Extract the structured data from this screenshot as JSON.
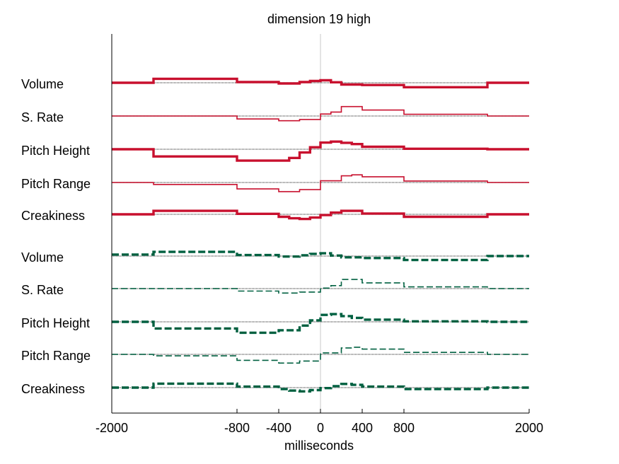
{
  "chart_data": {
    "type": "line",
    "title": "dimension 19 high",
    "xlabel": "milliseconds",
    "xlim": [
      -2000,
      2000
    ],
    "x_ticks": [
      -2000,
      -800,
      -400,
      0,
      400,
      800,
      2000
    ],
    "x_tick_labels": [
      "-2000",
      "-800",
      "-400",
      "0",
      "400",
      "800",
      "2000"
    ],
    "vertical_reference_line_at": 0,
    "colors": {
      "high": "#c8102e",
      "low": "#006040",
      "baseline": "#606060"
    },
    "groups": [
      {
        "color": "#c8102e",
        "dash": "solid",
        "rows": [
          {
            "label": "Volume",
            "thick": true,
            "steps": [
              [
                -2000,
                -1600,
                0
              ],
              [
                -1600,
                -800,
                1.6
              ],
              [
                -800,
                -400,
                0.3
              ],
              [
                -400,
                -200,
                -0.3
              ],
              [
                -200,
                -100,
                0.3
              ],
              [
                -100,
                0,
                0.7
              ],
              [
                0,
                100,
                1.0
              ],
              [
                100,
                200,
                0.2
              ],
              [
                200,
                400,
                -0.7
              ],
              [
                400,
                800,
                -0.9
              ],
              [
                800,
                1600,
                -1.8
              ],
              [
                1600,
                2000,
                0
              ]
            ]
          },
          {
            "label": "S. Rate",
            "thick": false,
            "steps": [
              [
                -2000,
                -800,
                0
              ],
              [
                -800,
                -400,
                -1.2
              ],
              [
                -400,
                -200,
                -1.9
              ],
              [
                -200,
                0,
                -1.4
              ],
              [
                0,
                100,
                0.8
              ],
              [
                100,
                200,
                1.6
              ],
              [
                200,
                400,
                3.8
              ],
              [
                400,
                800,
                2.4
              ],
              [
                800,
                1600,
                0.7
              ],
              [
                1600,
                2000,
                0
              ]
            ]
          },
          {
            "label": "Pitch Height",
            "thick": true,
            "steps": [
              [
                -2000,
                -1600,
                0
              ],
              [
                -1600,
                -800,
                -2.9
              ],
              [
                -800,
                -300,
                -4.6
              ],
              [
                -300,
                -200,
                -3.5
              ],
              [
                -200,
                -100,
                -1.3
              ],
              [
                -100,
                0,
                0.8
              ],
              [
                0,
                100,
                2.7
              ],
              [
                100,
                200,
                3.1
              ],
              [
                200,
                300,
                2.6
              ],
              [
                300,
                400,
                2.1
              ],
              [
                400,
                800,
                1.0
              ],
              [
                800,
                1600,
                0.2
              ],
              [
                1600,
                2000,
                0
              ]
            ]
          },
          {
            "label": "Pitch Range",
            "thick": false,
            "steps": [
              [
                -2000,
                -1600,
                0
              ],
              [
                -1600,
                -800,
                -0.8
              ],
              [
                -800,
                -400,
                -2.6
              ],
              [
                -400,
                -200,
                -3.7
              ],
              [
                -200,
                0,
                -2.9
              ],
              [
                0,
                200,
                0.7
              ],
              [
                200,
                300,
                2.7
              ],
              [
                300,
                400,
                3.1
              ],
              [
                400,
                800,
                2.3
              ],
              [
                800,
                1600,
                0.6
              ],
              [
                1600,
                2000,
                0
              ]
            ]
          },
          {
            "label": "Creakiness",
            "thick": true,
            "steps": [
              [
                -2000,
                -1600,
                0
              ],
              [
                -1600,
                -800,
                1.4
              ],
              [
                -800,
                -400,
                0.2
              ],
              [
                -400,
                -300,
                -1.0
              ],
              [
                -300,
                -200,
                -1.6
              ],
              [
                -200,
                -100,
                -1.9
              ],
              [
                -100,
                0,
                -1.3
              ],
              [
                0,
                100,
                -0.3
              ],
              [
                100,
                200,
                0.7
              ],
              [
                200,
                400,
                1.4
              ],
              [
                400,
                800,
                0.3
              ],
              [
                800,
                1600,
                -1.0
              ],
              [
                1600,
                2000,
                0
              ]
            ]
          }
        ]
      },
      {
        "color": "#006040",
        "dash": "dashed",
        "rows": [
          {
            "label": "Volume",
            "thick": true,
            "steps": [
              [
                -2000,
                -1600,
                0.6
              ],
              [
                -1600,
                -800,
                1.7
              ],
              [
                -800,
                -400,
                0.4
              ],
              [
                -400,
                -200,
                -0.2
              ],
              [
                -200,
                -100,
                0.3
              ],
              [
                -100,
                0,
                0.9
              ],
              [
                0,
                100,
                1.1
              ],
              [
                100,
                200,
                0.2
              ],
              [
                200,
                400,
                -0.5
              ],
              [
                400,
                800,
                -0.8
              ],
              [
                800,
                1600,
                -1.6
              ],
              [
                1600,
                2000,
                0
              ]
            ]
          },
          {
            "label": "S. Rate",
            "thick": false,
            "steps": [
              [
                -2000,
                -800,
                0
              ],
              [
                -800,
                -400,
                -1.0
              ],
              [
                -400,
                -200,
                -1.8
              ],
              [
                -200,
                0,
                -1.4
              ],
              [
                0,
                100,
                0.2
              ],
              [
                100,
                200,
                1.2
              ],
              [
                200,
                400,
                3.7
              ],
              [
                400,
                800,
                2.3
              ],
              [
                800,
                1600,
                0.7
              ],
              [
                1600,
                2000,
                0
              ]
            ]
          },
          {
            "label": "Pitch Height",
            "thick": true,
            "steps": [
              [
                -2000,
                -1600,
                0
              ],
              [
                -1600,
                -800,
                -2.7
              ],
              [
                -800,
                -400,
                -4.4
              ],
              [
                -400,
                -200,
                -3.4
              ],
              [
                -200,
                -100,
                -1.5
              ],
              [
                -100,
                0,
                0.6
              ],
              [
                0,
                100,
                2.8
              ],
              [
                100,
                200,
                3.1
              ],
              [
                200,
                300,
                2.3
              ],
              [
                300,
                400,
                1.6
              ],
              [
                400,
                800,
                0.9
              ],
              [
                800,
                1600,
                0.2
              ],
              [
                1600,
                2000,
                0
              ]
            ]
          },
          {
            "label": "Pitch Range",
            "thick": false,
            "steps": [
              [
                -2000,
                -1600,
                0
              ],
              [
                -1600,
                -800,
                -0.6
              ],
              [
                -800,
                -400,
                -2.4
              ],
              [
                -400,
                -200,
                -3.5
              ],
              [
                -200,
                0,
                -2.7
              ],
              [
                0,
                200,
                0.6
              ],
              [
                200,
                300,
                2.6
              ],
              [
                300,
                400,
                2.9
              ],
              [
                400,
                800,
                2.1
              ],
              [
                800,
                1600,
                0.8
              ],
              [
                1600,
                2000,
                0
              ]
            ]
          },
          {
            "label": "Creakiness",
            "thick": true,
            "steps": [
              [
                -2000,
                -1600,
                0
              ],
              [
                -1600,
                -800,
                1.6
              ],
              [
                -800,
                -400,
                0.4
              ],
              [
                -400,
                -300,
                -0.6
              ],
              [
                -300,
                -200,
                -1.2
              ],
              [
                -200,
                -100,
                -1.5
              ],
              [
                -100,
                0,
                -1.0
              ],
              [
                0,
                100,
                -0.2
              ],
              [
                100,
                200,
                0.6
              ],
              [
                200,
                300,
                1.5
              ],
              [
                300,
                400,
                1.1
              ],
              [
                400,
                800,
                0.4
              ],
              [
                800,
                1600,
                -0.6
              ],
              [
                1600,
                2000,
                0
              ]
            ]
          }
        ]
      }
    ]
  }
}
